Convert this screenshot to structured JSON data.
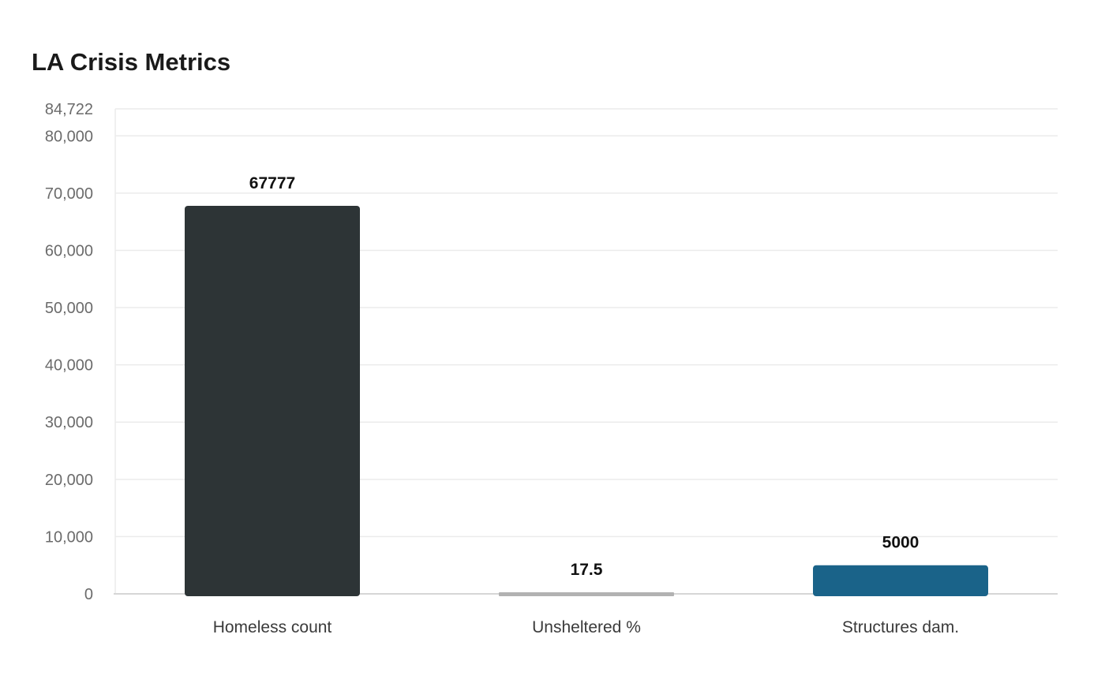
{
  "chart_data": {
    "type": "bar",
    "title": "LA Crisis Metrics",
    "categories": [
      "Homeless count",
      "Unsheltered %",
      "Structures dam."
    ],
    "values": [
      67777,
      17.5,
      5000
    ],
    "value_labels": [
      "67777",
      "17.5",
      "5000"
    ],
    "colors": [
      "#2d3436",
      "#b2b2b2",
      "#1a6389"
    ],
    "ylim": [
      0,
      84722
    ],
    "yticks": [
      0,
      10000,
      20000,
      30000,
      40000,
      50000,
      60000,
      70000,
      80000,
      84722
    ],
    "ytick_labels": [
      "0",
      "10,000",
      "20,000",
      "30,000",
      "40,000",
      "50,000",
      "60,000",
      "70,000",
      "80,000",
      "84,722"
    ],
    "xlabel": "",
    "ylabel": "",
    "grid": true,
    "legend": "none"
  },
  "colors": {
    "grid": "#ebebeb",
    "axis": "#d6d6d6"
  }
}
